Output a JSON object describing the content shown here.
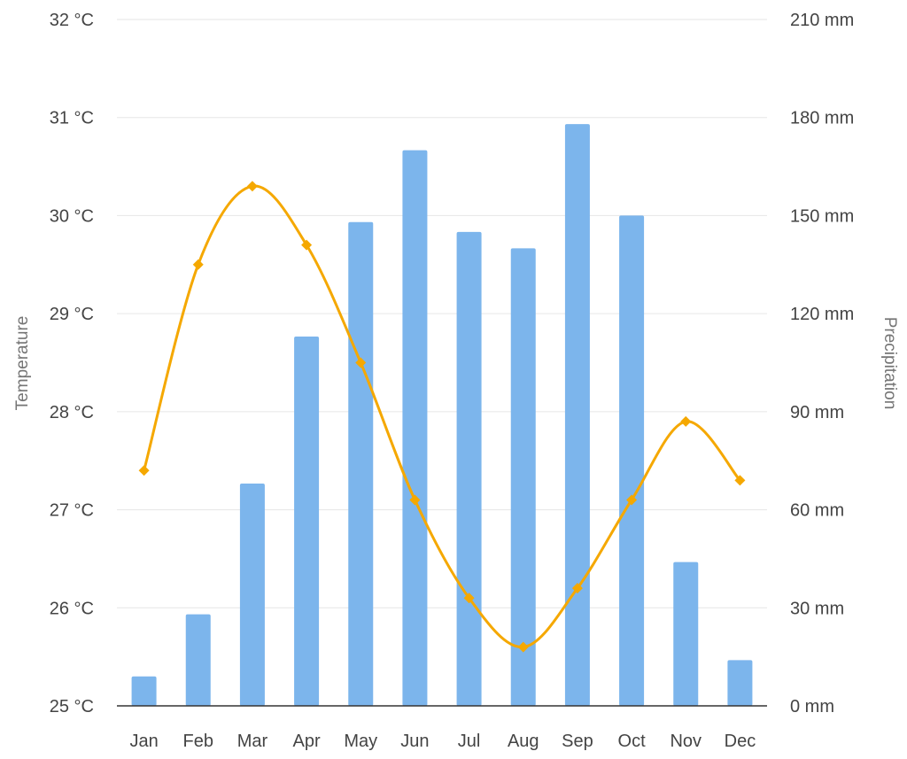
{
  "chart_data": {
    "type": "bar+line",
    "categories": [
      "Jan",
      "Feb",
      "Mar",
      "Apr",
      "May",
      "Jun",
      "Jul",
      "Aug",
      "Sep",
      "Oct",
      "Nov",
      "Dec"
    ],
    "series": [
      {
        "type": "bar",
        "axis": "right",
        "color": "#7cb5ec",
        "values": [
          9,
          28,
          68,
          113,
          148,
          170,
          145,
          140,
          178,
          150,
          44,
          14
        ]
      },
      {
        "type": "line",
        "axis": "left",
        "color": "#f5a800",
        "smooth": true,
        "marker": "diamond",
        "values": [
          27.4,
          29.5,
          30.3,
          29.7,
          28.5,
          27.1,
          26.1,
          25.6,
          26.2,
          27.1,
          27.9,
          27.3
        ]
      }
    ],
    "y_left": {
      "label": "Temperature",
      "range": [
        25,
        32
      ],
      "ticks": [
        "25 °C",
        "26 °C",
        "27 °C",
        "28 °C",
        "29 °C",
        "30 °C",
        "31 °C",
        "32 °C"
      ]
    },
    "y_right": {
      "label": "Precipitation",
      "range": [
        0,
        210
      ],
      "ticks": [
        "0 mm",
        "30 mm",
        "60 mm",
        "90 mm",
        "120 mm",
        "150 mm",
        "180 mm",
        "210 mm"
      ]
    },
    "grid": true,
    "legend": "none"
  }
}
